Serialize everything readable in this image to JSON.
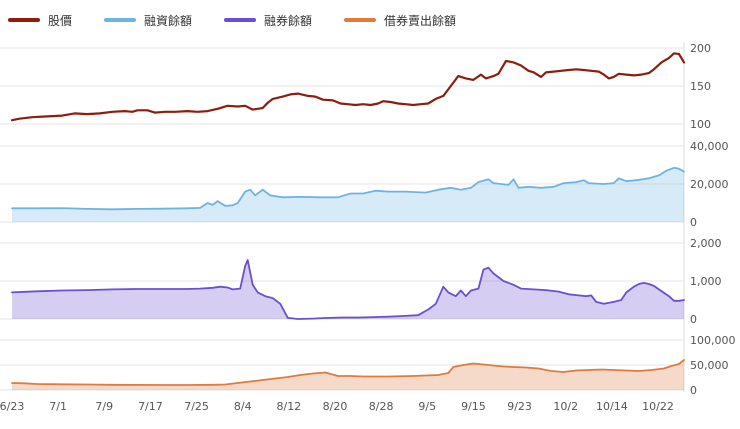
{
  "chart_data": {
    "type": "line",
    "x_tick_labels": [
      "6/23",
      "7/1",
      "7/9",
      "7/17",
      "7/25",
      "8/4",
      "8/12",
      "8/20",
      "8/28",
      "9/5",
      "9/15",
      "9/23",
      "10/2",
      "10/14",
      "10/22"
    ],
    "legend": [
      {
        "name": "股價",
        "color": "#8b1e0e"
      },
      {
        "name": "融資餘額",
        "color": "#6fb3e3"
      },
      {
        "name": "融券餘額",
        "color": "#6a4fd0"
      },
      {
        "name": "借券賣出餘額",
        "color": "#e07b3e"
      }
    ],
    "panels": [
      {
        "series": "股價",
        "color": "#8b1e0e",
        "area": false,
        "ylim": [
          100,
          200
        ],
        "yticks": [
          100,
          150,
          200
        ],
        "ytick_labels": [
          "100",
          "150",
          "200"
        ],
        "points": [
          [
            0,
            105
          ],
          [
            3,
            107
          ],
          [
            8,
            109
          ],
          [
            14,
            110
          ],
          [
            20,
            111
          ],
          [
            25,
            114
          ],
          [
            30,
            113
          ],
          [
            35,
            114
          ],
          [
            40,
            116
          ],
          [
            45,
            117
          ],
          [
            48,
            116
          ],
          [
            50,
            118
          ],
          [
            54,
            118
          ],
          [
            57,
            115
          ],
          [
            61,
            116
          ],
          [
            65,
            116
          ],
          [
            70,
            117
          ],
          [
            74,
            116
          ],
          [
            78,
            117
          ],
          [
            82,
            120
          ],
          [
            86,
            124
          ],
          [
            90,
            123
          ],
          [
            93,
            124
          ],
          [
            96,
            119
          ],
          [
            98,
            120
          ],
          [
            100,
            121
          ],
          [
            102,
            128
          ],
          [
            104,
            133
          ],
          [
            108,
            136
          ],
          [
            111,
            139
          ],
          [
            114,
            140
          ],
          [
            118,
            137
          ],
          [
            121,
            136
          ],
          [
            124,
            132
          ],
          [
            128,
            131
          ],
          [
            131,
            127
          ],
          [
            134,
            126
          ],
          [
            137,
            125
          ],
          [
            140,
            126
          ],
          [
            143,
            125
          ],
          [
            146,
            127
          ],
          [
            148,
            130
          ],
          [
            151,
            129
          ],
          [
            154,
            127
          ],
          [
            157,
            126
          ],
          [
            160,
            125
          ],
          [
            163,
            126
          ],
          [
            166,
            127
          ],
          [
            169,
            133
          ],
          [
            172,
            137
          ],
          [
            175,
            150
          ],
          [
            178,
            163
          ],
          [
            181,
            160
          ],
          [
            184,
            158
          ],
          [
            187,
            165
          ],
          [
            189,
            160
          ],
          [
            192,
            163
          ],
          [
            194,
            166
          ],
          [
            197,
            183
          ],
          [
            200,
            181
          ],
          [
            203,
            177
          ],
          [
            206,
            170
          ],
          [
            208,
            168
          ],
          [
            211,
            162
          ],
          [
            213,
            168
          ],
          [
            216,
            169
          ],
          [
            219,
            170
          ],
          [
            222,
            171
          ],
          [
            225,
            172
          ],
          [
            228,
            171
          ],
          [
            231,
            170
          ],
          [
            234,
            169
          ],
          [
            236,
            165
          ],
          [
            238,
            160
          ],
          [
            240,
            162
          ],
          [
            242,
            166
          ],
          [
            245,
            165
          ],
          [
            248,
            164
          ],
          [
            251,
            165
          ],
          [
            254,
            167
          ],
          [
            256,
            172
          ],
          [
            259,
            181
          ],
          [
            262,
            187
          ],
          [
            264,
            193
          ],
          [
            266,
            192
          ],
          [
            268,
            181
          ]
        ]
      },
      {
        "series": "融資餘額",
        "color": "#6fb3e3",
        "area": true,
        "ylim": [
          0,
          40000
        ],
        "yticks": [
          0,
          20000,
          40000
        ],
        "ytick_labels": [
          "0",
          "20,000",
          "40,000"
        ],
        "points": [
          [
            0,
            7200
          ],
          [
            10,
            7200
          ],
          [
            20,
            7300
          ],
          [
            30,
            6900
          ],
          [
            40,
            6700
          ],
          [
            50,
            6900
          ],
          [
            60,
            7000
          ],
          [
            70,
            7200
          ],
          [
            75,
            7400
          ],
          [
            78,
            10000
          ],
          [
            80,
            9000
          ],
          [
            82,
            11000
          ],
          [
            85,
            8500
          ],
          [
            88,
            8800
          ],
          [
            90,
            10000
          ],
          [
            93,
            16000
          ],
          [
            95,
            17000
          ],
          [
            97,
            14000
          ],
          [
            100,
            17000
          ],
          [
            103,
            14000
          ],
          [
            108,
            13000
          ],
          [
            115,
            13200
          ],
          [
            123,
            13000
          ],
          [
            130,
            13000
          ],
          [
            135,
            15000
          ],
          [
            140,
            15000
          ],
          [
            145,
            16500
          ],
          [
            150,
            16000
          ],
          [
            157,
            16000
          ],
          [
            165,
            15500
          ],
          [
            170,
            17000
          ],
          [
            175,
            18000
          ],
          [
            179,
            17000
          ],
          [
            183,
            18000
          ],
          [
            186,
            21000
          ],
          [
            190,
            22500
          ],
          [
            192,
            20500
          ],
          [
            195,
            20000
          ],
          [
            198,
            19500
          ],
          [
            200,
            22500
          ],
          [
            202,
            18000
          ],
          [
            206,
            18500
          ],
          [
            211,
            18000
          ],
          [
            216,
            18500
          ],
          [
            220,
            20500
          ],
          [
            225,
            21000
          ],
          [
            228,
            22000
          ],
          [
            230,
            20500
          ],
          [
            236,
            20000
          ],
          [
            240,
            20500
          ],
          [
            242,
            23000
          ],
          [
            245,
            21500
          ],
          [
            249,
            22000
          ],
          [
            254,
            23000
          ],
          [
            258,
            24500
          ],
          [
            261,
            27000
          ],
          [
            264,
            28500
          ],
          [
            266,
            28000
          ],
          [
            268,
            26500
          ]
        ]
      },
      {
        "series": "融券餘額",
        "color": "#6a4fd0",
        "area": true,
        "ylim": [
          0,
          2000
        ],
        "yticks": [
          0,
          1000,
          2000
        ],
        "ytick_labels": [
          "0",
          "1,000",
          "2,000"
        ],
        "points": [
          [
            0,
            700
          ],
          [
            10,
            730
          ],
          [
            20,
            750
          ],
          [
            30,
            760
          ],
          [
            40,
            780
          ],
          [
            50,
            790
          ],
          [
            60,
            790
          ],
          [
            70,
            790
          ],
          [
            75,
            800
          ],
          [
            80,
            820
          ],
          [
            83,
            850
          ],
          [
            86,
            830
          ],
          [
            88,
            780
          ],
          [
            91,
            800
          ],
          [
            93,
            1400
          ],
          [
            94,
            1550
          ],
          [
            96,
            900
          ],
          [
            98,
            700
          ],
          [
            101,
            600
          ],
          [
            104,
            550
          ],
          [
            107,
            400
          ],
          [
            110,
            30
          ],
          [
            114,
            0
          ],
          [
            120,
            10
          ],
          [
            126,
            30
          ],
          [
            132,
            40
          ],
          [
            138,
            40
          ],
          [
            144,
            50
          ],
          [
            150,
            60
          ],
          [
            156,
            80
          ],
          [
            162,
            100
          ],
          [
            166,
            250
          ],
          [
            169,
            400
          ],
          [
            172,
            850
          ],
          [
            174,
            700
          ],
          [
            177,
            600
          ],
          [
            179,
            750
          ],
          [
            181,
            600
          ],
          [
            183,
            750
          ],
          [
            186,
            800
          ],
          [
            188,
            1300
          ],
          [
            190,
            1350
          ],
          [
            192,
            1200
          ],
          [
            196,
            1000
          ],
          [
            200,
            900
          ],
          [
            203,
            800
          ],
          [
            208,
            780
          ],
          [
            213,
            760
          ],
          [
            218,
            720
          ],
          [
            222,
            650
          ],
          [
            226,
            620
          ],
          [
            229,
            600
          ],
          [
            231,
            620
          ],
          [
            233,
            450
          ],
          [
            236,
            400
          ],
          [
            240,
            450
          ],
          [
            243,
            500
          ],
          [
            245,
            700
          ],
          [
            248,
            850
          ],
          [
            250,
            920
          ],
          [
            252,
            950
          ],
          [
            254,
            920
          ],
          [
            256,
            870
          ],
          [
            258,
            780
          ],
          [
            262,
            600
          ],
          [
            264,
            480
          ],
          [
            266,
            480
          ],
          [
            268,
            500
          ]
        ]
      },
      {
        "series": "借券賣出餘額",
        "color": "#e07b3e",
        "area": true,
        "ylim": [
          0,
          100000
        ],
        "yticks": [
          0,
          50000,
          100000
        ],
        "ytick_labels": [
          "0",
          "50,000",
          "100,000"
        ],
        "points": [
          [
            0,
            14000
          ],
          [
            5,
            13500
          ],
          [
            10,
            12000
          ],
          [
            20,
            11500
          ],
          [
            30,
            11000
          ],
          [
            40,
            10500
          ],
          [
            50,
            10200
          ],
          [
            60,
            10000
          ],
          [
            70,
            10000
          ],
          [
            80,
            10500
          ],
          [
            85,
            11000
          ],
          [
            90,
            14000
          ],
          [
            95,
            17000
          ],
          [
            100,
            20000
          ],
          [
            105,
            23000
          ],
          [
            110,
            26000
          ],
          [
            115,
            30000
          ],
          [
            120,
            33000
          ],
          [
            125,
            35000
          ],
          [
            130,
            28000
          ],
          [
            135,
            28000
          ],
          [
            140,
            27000
          ],
          [
            145,
            27000
          ],
          [
            150,
            27000
          ],
          [
            160,
            28000
          ],
          [
            165,
            29000
          ],
          [
            170,
            30000
          ],
          [
            174,
            34000
          ],
          [
            176,
            46000
          ],
          [
            180,
            50000
          ],
          [
            184,
            53000
          ],
          [
            188,
            51000
          ],
          [
            192,
            49000
          ],
          [
            196,
            47000
          ],
          [
            200,
            46000
          ],
          [
            205,
            45000
          ],
          [
            210,
            43000
          ],
          [
            215,
            38000
          ],
          [
            220,
            36000
          ],
          [
            225,
            39000
          ],
          [
            230,
            40000
          ],
          [
            235,
            41000
          ],
          [
            240,
            40000
          ],
          [
            245,
            39000
          ],
          [
            250,
            38000
          ],
          [
            255,
            40000
          ],
          [
            260,
            43000
          ],
          [
            263,
            48000
          ],
          [
            266,
            52000
          ],
          [
            268,
            60000
          ]
        ]
      }
    ]
  }
}
